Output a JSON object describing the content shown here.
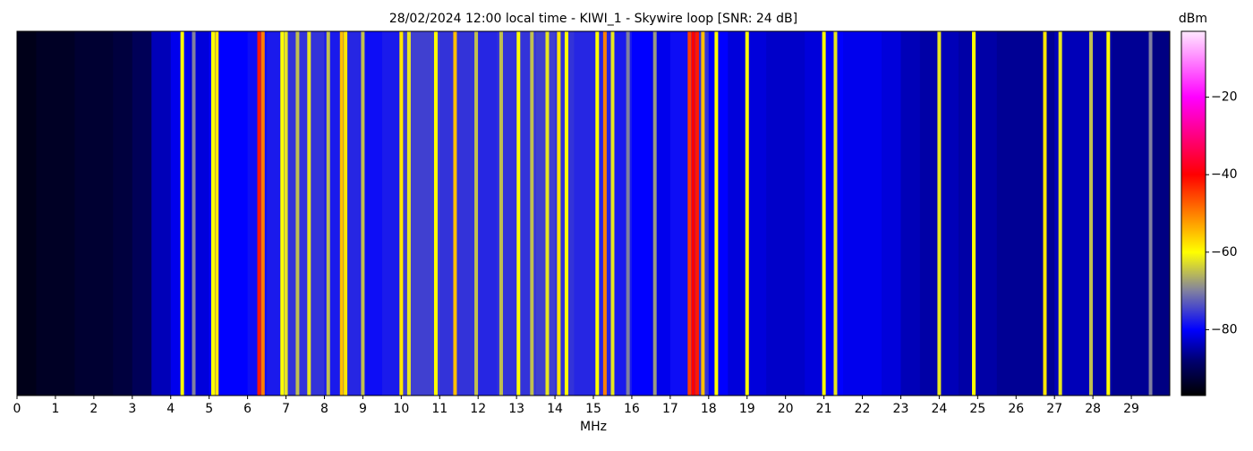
{
  "chart_data": {
    "type": "spectrogram",
    "title": "28/02/2024 12:00 local time - KIWI_1 - Skywire loop [SNR: 24 dB]",
    "xlabel": "MHz",
    "colorbar_label": "dBm",
    "xlim": [
      0,
      30
    ],
    "xticks": [
      0,
      1,
      2,
      3,
      4,
      5,
      6,
      7,
      8,
      9,
      10,
      11,
      12,
      13,
      14,
      15,
      16,
      17,
      18,
      19,
      20,
      21,
      22,
      23,
      24,
      25,
      26,
      27,
      28,
      29
    ],
    "clim": [
      -97,
      -3
    ],
    "cticks": [
      {
        "value": -20,
        "label": "−20"
      },
      {
        "value": -40,
        "label": "−40"
      },
      {
        "value": -60,
        "label": "−60"
      },
      {
        "value": -80,
        "label": "−80"
      }
    ],
    "colormap": [
      {
        "value": -97,
        "color": "#000000"
      },
      {
        "value": -88,
        "color": "#000070"
      },
      {
        "value": -80,
        "color": "#0000ff"
      },
      {
        "value": -70,
        "color": "#8080a0"
      },
      {
        "value": -60,
        "color": "#ffff00"
      },
      {
        "value": -40,
        "color": "#ff0000"
      },
      {
        "value": -20,
        "color": "#ff00ff"
      },
      {
        "value": -3,
        "color": "#ffe8ff"
      }
    ],
    "background": {
      "bins": [
        0,
        0.5,
        1,
        1.5,
        2,
        2.5,
        3,
        3.5,
        4,
        4.5,
        5,
        5.5,
        6,
        6.5,
        7,
        7.5,
        8,
        8.5,
        9,
        9.5,
        10,
        10.5,
        11,
        11.5,
        12,
        12.5,
        13,
        13.5,
        14,
        14.5,
        15,
        15.5,
        16,
        16.5,
        17,
        17.5,
        18,
        18.5,
        19,
        19.5,
        20,
        20.5,
        21,
        21.5,
        22,
        22.5,
        23,
        23.5,
        24,
        24.5,
        25,
        25.5,
        26,
        26.5,
        27,
        27.5,
        28,
        28.5,
        29,
        29.5,
        30
      ],
      "values": [
        -95,
        -94,
        -94,
        -93,
        -93,
        -92,
        -90,
        -84,
        -81,
        -82,
        -80,
        -80,
        -79,
        -78,
        -76,
        -76,
        -78,
        -77,
        -79,
        -78,
        -75,
        -75,
        -76,
        -76,
        -77,
        -76,
        -76,
        -75,
        -76,
        -77,
        -77,
        -78,
        -80,
        -81,
        -79,
        -76,
        -80,
        -82,
        -82,
        -83,
        -83,
        -82,
        -80,
        -81,
        -81,
        -82,
        -84,
        -85,
        -84,
        -85,
        -85,
        -86,
        -86,
        -86,
        -84,
        -84,
        -85,
        -86,
        -86,
        -87
      ]
    },
    "signals": {
      "x": [
        4.3,
        4.6,
        5.1,
        5.2,
        6.3,
        6.4,
        6.9,
        7.0,
        7.3,
        7.6,
        8.1,
        8.45,
        8.55,
        9.0,
        10.0,
        10.2,
        10.9,
        11.4,
        11.95,
        12.6,
        13.05,
        13.4,
        13.8,
        14.1,
        14.3,
        15.1,
        15.3,
        15.5,
        15.9,
        16.6,
        17.5,
        17.6,
        17.7,
        17.85,
        18.2,
        19.0,
        21.0,
        21.3,
        24.0,
        24.9,
        26.75,
        27.15,
        27.95,
        28.4,
        29.5
      ],
      "values": [
        -60,
        -70,
        -60,
        -58,
        -42,
        -50,
        -60,
        -62,
        -65,
        -62,
        -65,
        -55,
        -58,
        -65,
        -58,
        -62,
        -60,
        -55,
        -65,
        -65,
        -60,
        -65,
        -62,
        -58,
        -60,
        -60,
        -50,
        -62,
        -70,
        -68,
        -45,
        -40,
        -42,
        -55,
        -60,
        -60,
        -60,
        -62,
        -62,
        -60,
        -58,
        -62,
        -65,
        -60,
        -70
      ]
    }
  }
}
